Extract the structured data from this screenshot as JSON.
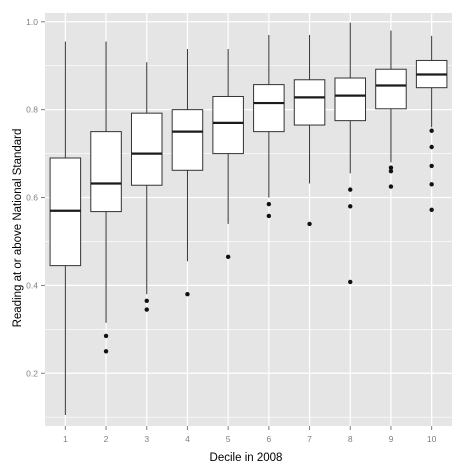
{
  "chart_data": {
    "type": "boxplot",
    "title": "",
    "xlabel": "Decile in 2008",
    "ylabel": "Reading at or above National Standard",
    "categories": [
      "1",
      "2",
      "3",
      "4",
      "5",
      "6",
      "7",
      "8",
      "9",
      "10"
    ],
    "ylim": [
      0.08,
      1.02
    ],
    "yticks": [
      0.2,
      0.4,
      0.6,
      0.8,
      1.0
    ],
    "ytick_labels": [
      "0.2",
      "0.4",
      "0.6",
      "0.8",
      "1.0"
    ],
    "grid": true,
    "panel_background": "#e5e5e5",
    "grid_color": "#ffffff",
    "box_fill": "#ffffff",
    "line_color": "#333333",
    "median_color": "#1a1a1a",
    "outlier_color": "#111111",
    "boxes": [
      {
        "category": "1",
        "whisker_low": 0.105,
        "q1": 0.445,
        "median": 0.57,
        "q3": 0.69,
        "whisker_high": 0.955,
        "outliers": []
      },
      {
        "category": "2",
        "whisker_low": 0.315,
        "q1": 0.568,
        "median": 0.632,
        "q3": 0.75,
        "whisker_high": 0.955,
        "outliers": [
          0.285,
          0.25
        ]
      },
      {
        "category": "3",
        "whisker_low": 0.38,
        "q1": 0.628,
        "median": 0.7,
        "q3": 0.792,
        "whisker_high": 0.908,
        "outliers": [
          0.365,
          0.345
        ]
      },
      {
        "category": "4",
        "whisker_low": 0.455,
        "q1": 0.662,
        "median": 0.75,
        "q3": 0.8,
        "whisker_high": 0.938,
        "outliers": [
          0.38
        ]
      },
      {
        "category": "5",
        "whisker_low": 0.54,
        "q1": 0.7,
        "median": 0.77,
        "q3": 0.83,
        "whisker_high": 0.938,
        "outliers": [
          0.465
        ]
      },
      {
        "category": "6",
        "whisker_low": 0.6,
        "q1": 0.75,
        "median": 0.815,
        "q3": 0.857,
        "whisker_high": 0.97,
        "outliers": [
          0.585,
          0.558
        ]
      },
      {
        "category": "7",
        "whisker_low": 0.632,
        "q1": 0.765,
        "median": 0.828,
        "q3": 0.868,
        "whisker_high": 0.97,
        "outliers": [
          0.54
        ]
      },
      {
        "category": "8",
        "whisker_low": 0.655,
        "q1": 0.775,
        "median": 0.832,
        "q3": 0.872,
        "whisker_high": 0.998,
        "outliers": [
          0.618,
          0.58,
          0.408
        ]
      },
      {
        "category": "9",
        "whisker_low": 0.68,
        "q1": 0.802,
        "median": 0.855,
        "q3": 0.892,
        "whisker_high": 0.98,
        "outliers": [
          0.668,
          0.66,
          0.625
        ]
      },
      {
        "category": "10",
        "whisker_low": 0.76,
        "q1": 0.85,
        "median": 0.88,
        "q3": 0.912,
        "whisker_high": 0.968,
        "outliers": [
          0.752,
          0.715,
          0.672,
          0.63,
          0.572
        ]
      }
    ]
  }
}
